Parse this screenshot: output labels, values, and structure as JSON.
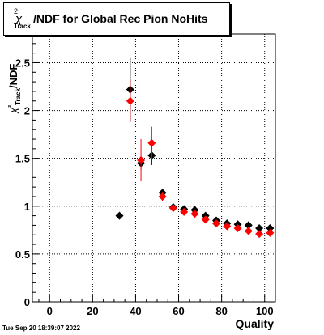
{
  "title": {
    "symbol": "χ",
    "superscript": "2",
    "subscript": "Track",
    "text": "/NDF for Global Rec Pion NoHits"
  },
  "ylabel_rotated": "χ²Track/NDF",
  "timestamp": "Tue Sep 20 18:39:07 2022",
  "chart_data": {
    "type": "scatter",
    "xlabel": "Quality",
    "ylabel": "χ²Track/NDF",
    "xlim": [
      -8,
      105
    ],
    "ylim": [
      0,
      2.8
    ],
    "xticks": [
      0,
      20,
      40,
      60,
      80,
      100
    ],
    "yticks": [
      0,
      0.5,
      1,
      1.5,
      2,
      2.5
    ],
    "ytick_labels": [
      "0",
      "0.5",
      "1",
      "1.5",
      "2",
      "2.5"
    ],
    "grid": true,
    "series": [
      {
        "color": "#000000",
        "points": [
          {
            "x": 32.5,
            "y": 0.9,
            "err": 0.0
          },
          {
            "x": 37.5,
            "y": 2.22,
            "err": 0.33
          },
          {
            "x": 42.5,
            "y": 1.45,
            "err": 0.07
          },
          {
            "x": 47.5,
            "y": 1.53,
            "err": 0.1
          },
          {
            "x": 52.5,
            "y": 1.14,
            "err": 0.03
          },
          {
            "x": 57.5,
            "y": 0.99,
            "err": 0.02
          },
          {
            "x": 62.5,
            "y": 0.97,
            "err": 0.02
          },
          {
            "x": 67.5,
            "y": 0.96,
            "err": 0.02
          },
          {
            "x": 72.5,
            "y": 0.9,
            "err": 0.02
          },
          {
            "x": 77.5,
            "y": 0.85,
            "err": 0.02
          },
          {
            "x": 82.5,
            "y": 0.82,
            "err": 0.02
          },
          {
            "x": 87.5,
            "y": 0.81,
            "err": 0.02
          },
          {
            "x": 92.5,
            "y": 0.8,
            "err": 0.02
          },
          {
            "x": 97.5,
            "y": 0.77,
            "err": 0.02
          },
          {
            "x": 102.5,
            "y": 0.77,
            "err": 0.02
          }
        ]
      },
      {
        "color": "#ff0000",
        "points": [
          {
            "x": 37.5,
            "y": 2.1,
            "err": 0.22
          },
          {
            "x": 42.5,
            "y": 1.48,
            "err": 0.22
          },
          {
            "x": 47.5,
            "y": 1.66,
            "err": 0.17
          },
          {
            "x": 52.5,
            "y": 1.1,
            "err": 0.05
          },
          {
            "x": 57.5,
            "y": 0.98,
            "err": 0.03
          },
          {
            "x": 62.5,
            "y": 0.94,
            "err": 0.03
          },
          {
            "x": 67.5,
            "y": 0.92,
            "err": 0.02
          },
          {
            "x": 72.5,
            "y": 0.86,
            "err": 0.02
          },
          {
            "x": 77.5,
            "y": 0.82,
            "err": 0.02
          },
          {
            "x": 82.5,
            "y": 0.79,
            "err": 0.02
          },
          {
            "x": 87.5,
            "y": 0.77,
            "err": 0.02
          },
          {
            "x": 92.5,
            "y": 0.74,
            "err": 0.02
          },
          {
            "x": 97.5,
            "y": 0.71,
            "err": 0.02
          },
          {
            "x": 102.5,
            "y": 0.72,
            "err": 0.02
          }
        ]
      }
    ]
  }
}
